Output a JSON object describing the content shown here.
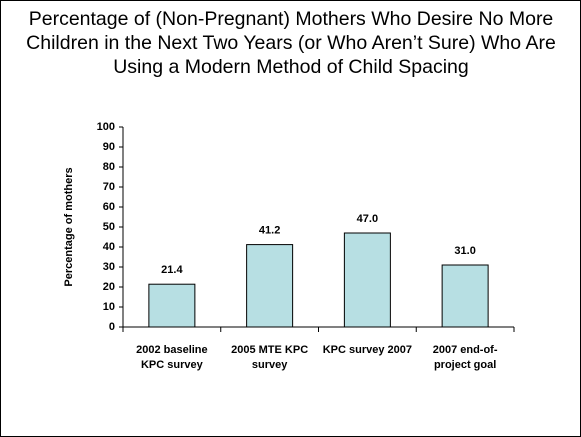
{
  "chart_data": {
    "type": "bar",
    "title": "Percentage of (Non-Pregnant) Mothers Who Desire No More Children in the Next Two Years (or Who Aren’t Sure) Who Are Using a Modern Method of Child Spacing",
    "y_label": "Percentage of mothers",
    "categories": [
      "2002  baseline KPC survey",
      "2005 MTE KPC survey",
      "KPC survey 2007",
      "2007 end-of-project goal"
    ],
    "values": [
      21.4,
      41.2,
      47.0,
      31.0
    ],
    "value_labels": [
      "21.4",
      "41.2",
      "47.0",
      "31.0"
    ],
    "color": "#b7dfe3",
    "ylim": [
      0,
      100
    ],
    "yticks": [
      0,
      10,
      20,
      30,
      40,
      50,
      60,
      70,
      80,
      90,
      100
    ],
    "grid": false
  }
}
